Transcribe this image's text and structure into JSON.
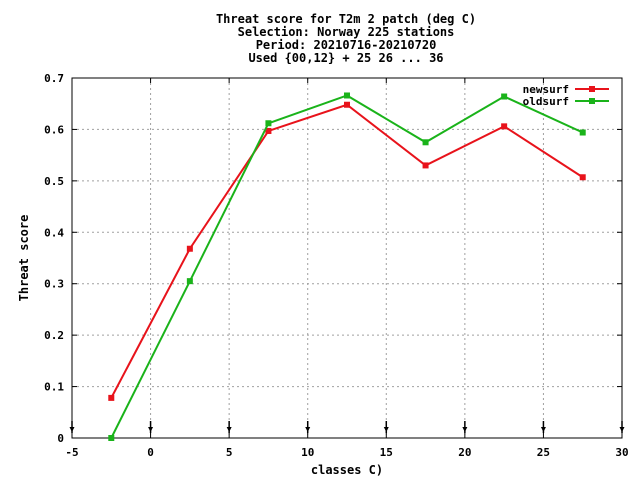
{
  "chart_data": {
    "type": "line",
    "title_lines": [
      "Threat score  for T2m 2 patch (deg C)",
      "Selection: Norway    225 stations",
      "Period: 20210716-20210720",
      "Used {00,12} + 25 26 ... 36"
    ],
    "xlabel": "classes C)",
    "ylabel": "Threat score",
    "xlim": [
      -5,
      30
    ],
    "ylim": [
      0,
      0.7
    ],
    "xticks": [
      -5,
      0,
      5,
      10,
      15,
      20,
      25,
      30
    ],
    "yticks": [
      0,
      0.1,
      0.2,
      0.3,
      0.4,
      0.5,
      0.6,
      0.7
    ],
    "grid": true,
    "legend_position": "top-right",
    "x": [
      -2.5,
      2.5,
      7.5,
      12.5,
      17.5,
      22.5,
      27.5
    ],
    "series": [
      {
        "name": "newsurf",
        "color": "#e8131b",
        "values": [
          0.078,
          0.368,
          0.597,
          0.648,
          0.53,
          0.606,
          0.507
        ]
      },
      {
        "name": "oldsurf",
        "color": "#1ab31a",
        "values": [
          0.0,
          0.305,
          0.612,
          0.666,
          0.575,
          0.664,
          0.594
        ]
      }
    ],
    "bottom_markers_x": [
      -5,
      0,
      5,
      10,
      15,
      20,
      25,
      30
    ]
  }
}
